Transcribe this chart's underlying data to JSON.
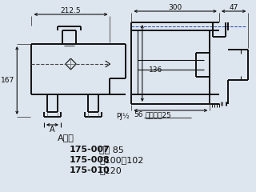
{
  "bg_color": "#dde5ee",
  "line_color": "#111111",
  "text_color": "#111111",
  "blue_dash": "#2244aa",
  "dims": {
    "d212": "212.5",
    "d300": "300",
    "d47": "47",
    "d167": "167",
    "d136": "136",
    "d56": "56",
    "hex": "六角対辺25",
    "pj": "PJ½",
    "a_label": "A",
    "a_dim_label": "A寸法"
  },
  "spec_lines": [
    {
      "bold_part": "175-007",
      "rest": "は　 85"
    },
    {
      "bold_part": "175-008",
      "rest": "は100～102"
    },
    {
      "bold_part": "175-010",
      "rest": "は120"
    }
  ]
}
